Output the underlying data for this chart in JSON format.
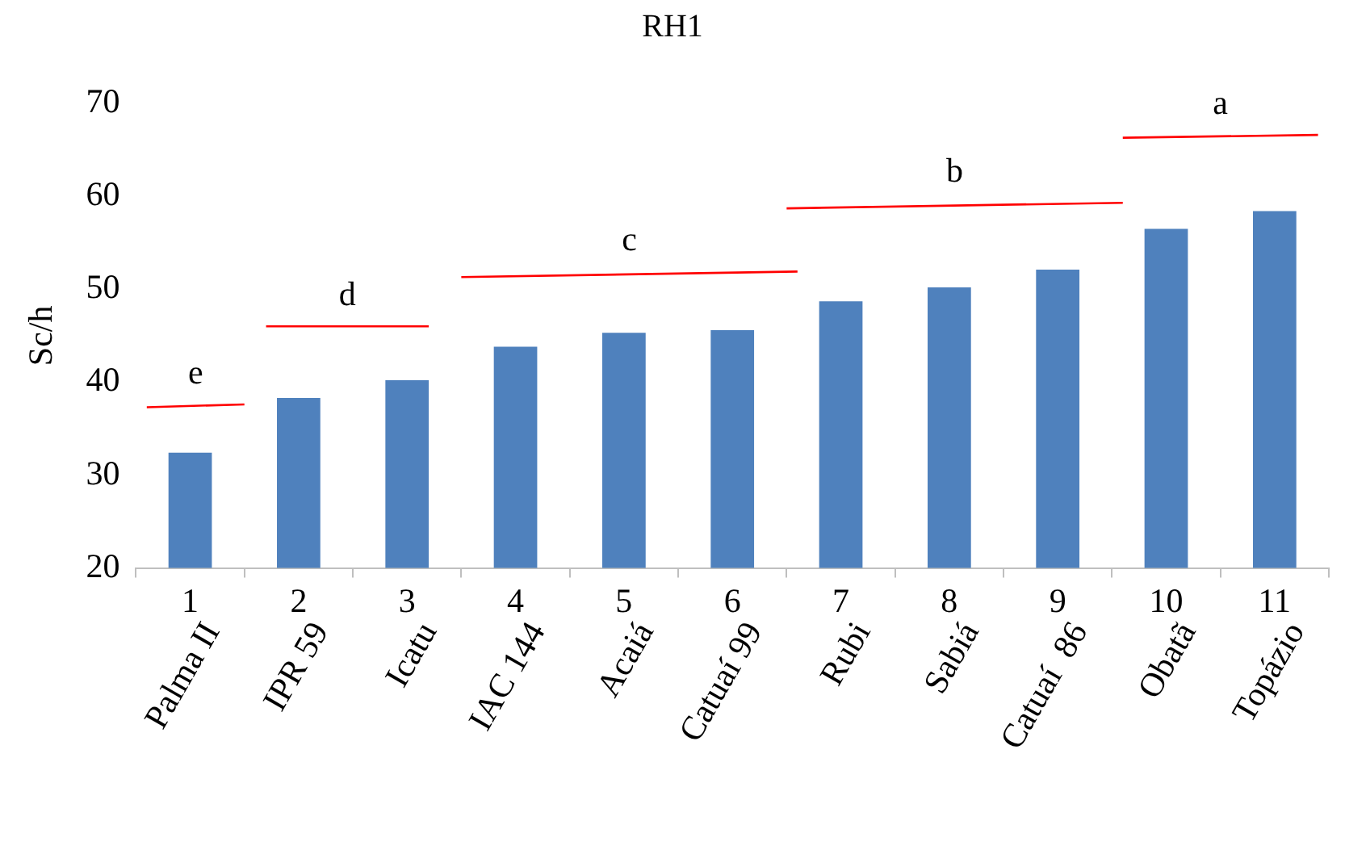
{
  "chart_data": {
    "type": "bar",
    "title": "RH1",
    "ylabel": "Sc/h",
    "x": [
      1,
      2,
      3,
      4,
      5,
      6,
      7,
      8,
      9,
      10,
      11
    ],
    "xlim": [
      0.5,
      11.5
    ],
    "xticks": [
      1,
      2,
      3,
      4,
      5,
      6,
      7,
      8,
      9,
      10,
      11
    ],
    "values": [
      32.4,
      38.3,
      40.2,
      43.8,
      45.3,
      45.6,
      48.7,
      50.2,
      52.1,
      56.5,
      58.4
    ],
    "color": "#4f81bd",
    "ylim": [
      20,
      70
    ],
    "yticks": [
      20,
      30,
      40,
      50,
      60,
      70
    ],
    "grid": false,
    "legend": false,
    "series": [
      {
        "type": "line",
        "name": "e",
        "color": "#ff0000",
        "x": [
          0.6,
          1.5
        ],
        "values": [
          37.3,
          37.6
        ]
      },
      {
        "type": "line",
        "name": "d",
        "color": "#ff0000",
        "x": [
          1.7,
          3.2
        ],
        "values": [
          46,
          46
        ]
      },
      {
        "type": "line",
        "name": "c",
        "color": "#ff0000",
        "x": [
          3.5,
          6.6
        ],
        "values": [
          51.3,
          51.9
        ]
      },
      {
        "type": "line",
        "name": "b",
        "color": "#ff0000",
        "x": [
          6.5,
          9.6
        ],
        "values": [
          58.7,
          59.3
        ]
      },
      {
        "type": "line",
        "name": "a",
        "color": "#ff0000",
        "x": [
          9.6,
          11.4
        ],
        "values": [
          66.3,
          66.6
        ]
      }
    ],
    "annotations": [
      "Palma II",
      "IPR 59",
      "Icatu",
      "IAC 144",
      "Acaiá",
      "Catuaí 99",
      "Rubi",
      "Sabiá",
      "Catuaí  86",
      "Obatã",
      "Topázio"
    ]
  }
}
